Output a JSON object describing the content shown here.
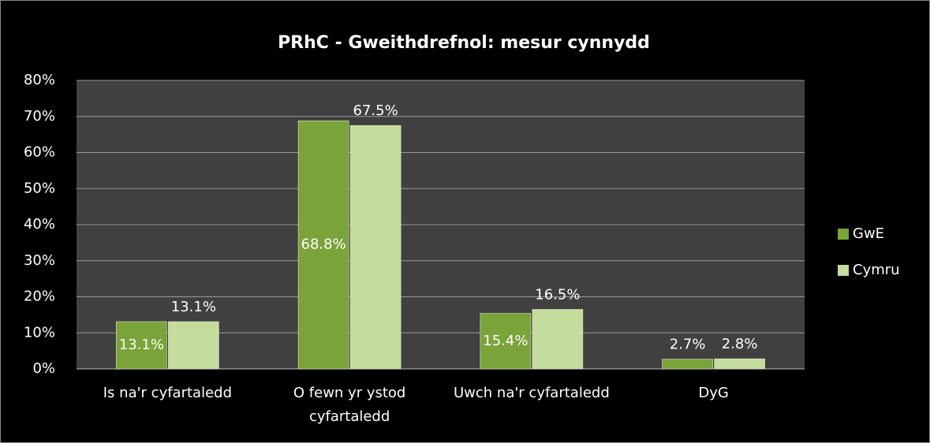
{
  "chart_data": {
    "type": "bar",
    "title": "PRhC - Gweithdrefnol: mesur cynnydd",
    "categories": [
      "Is na'r cyfartaledd",
      "O fewn yr ystod cyfartaledd",
      "Uwch na'r cyfartaledd",
      "DyG"
    ],
    "series": [
      {
        "name": "GwE",
        "color": "#7aa33a",
        "values": [
          13.1,
          68.8,
          15.4,
          2.7
        ],
        "value_labels": [
          "13.1%",
          "68.8%",
          "15.4%",
          "2.7%"
        ]
      },
      {
        "name": "Cymru",
        "color": "#c4dc9c",
        "values": [
          13.1,
          67.5,
          16.5,
          2.8
        ],
        "value_labels": [
          "13.1%",
          "67.5%",
          "16.5%",
          "2.8%"
        ]
      }
    ],
    "ylim": [
      0,
      80
    ],
    "yticks": [
      {
        "value": 0,
        "label": "0%"
      },
      {
        "value": 10,
        "label": "10%"
      },
      {
        "value": 20,
        "label": "20%"
      },
      {
        "value": 30,
        "label": "30%"
      },
      {
        "value": 40,
        "label": "40%"
      },
      {
        "value": 50,
        "label": "50%"
      },
      {
        "value": 60,
        "label": "60%"
      },
      {
        "value": 70,
        "label": "70%"
      },
      {
        "value": 80,
        "label": "80%"
      }
    ],
    "grid": true,
    "legend": "right"
  }
}
